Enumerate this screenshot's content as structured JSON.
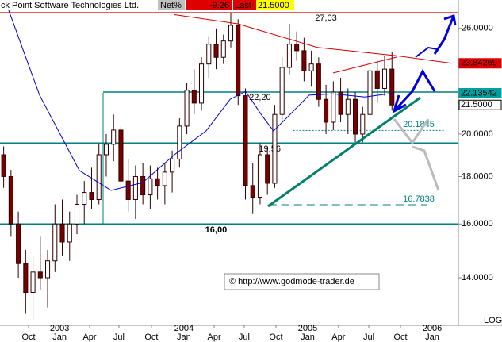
{
  "chart_data": {
    "type": "candlestick",
    "header": {
      "title": "ck Point Software Technologies Ltd.",
      "net_label": "Net%",
      "net": -9.26,
      "last_label": "Last",
      "last": {
        "value": 21.5,
        "label": "21.5000"
      }
    },
    "log_scale": true,
    "xlim": [
      0,
      187.7
    ],
    "ylim": [
      12.44,
      27.9
    ],
    "yticks": [
      {
        "value": 14,
        "label": "14.0000"
      },
      {
        "value": 16,
        "label": "16.0000"
      },
      {
        "value": 18,
        "label": "18.0000"
      },
      {
        "value": 20,
        "label": "20.0000"
      },
      {
        "value": 26,
        "label": "26.0000"
      }
    ],
    "xticks": [
      {
        "value": 11.7,
        "label": "Oct"
      },
      {
        "value": 24.4,
        "label": "Jan"
      },
      {
        "value": 36.7,
        "label": "Apr"
      },
      {
        "value": 48.7,
        "label": "Jul"
      },
      {
        "value": 62,
        "label": "Oct"
      },
      {
        "value": 75.3,
        "label": "Jan"
      },
      {
        "value": 87.7,
        "label": "Apr"
      },
      {
        "value": 100,
        "label": "Jul"
      },
      {
        "value": 113,
        "label": "Oct"
      },
      {
        "value": 126,
        "label": "Jan"
      },
      {
        "value": 138.6,
        "label": "Apr"
      },
      {
        "value": 151,
        "label": "Jul"
      },
      {
        "value": 164,
        "label": "Oct"
      },
      {
        "value": 177,
        "label": "Jan"
      }
    ],
    "year_ticks": [
      {
        "value": 24.4,
        "label": "2003"
      },
      {
        "value": 75.3,
        "label": "2004"
      },
      {
        "value": 126,
        "label": "2005"
      },
      {
        "value": 177,
        "label": "2006"
      }
    ],
    "scale_label": "LOG",
    "candles": {
      "up_color": "#ffffff",
      "down_color": "#7a0000",
      "edge_color": "#300000",
      "x": [
        1.5,
        4.5,
        7.5,
        10.5,
        13.5,
        16.5,
        19.5,
        22.5,
        25.5,
        28.5,
        31.5,
        34.5,
        37.5,
        40.5,
        43.5,
        46.5,
        49.5,
        52.5,
        55.5,
        58.5,
        61.5,
        64.5,
        67.5,
        70.5,
        73.5,
        76.5,
        79.5,
        82.5,
        85.5,
        88.5,
        91.5,
        94.5,
        97.5,
        100.5,
        103.5,
        106.5,
        109.5,
        112.5,
        115.5,
        118.5,
        121.5,
        124.5,
        127.5,
        130.5,
        133.5,
        136.5,
        139.5,
        142.5,
        145.5,
        148.5,
        151.5,
        154.5,
        157.5,
        160.5
      ],
      "open": [
        19,
        18,
        16,
        14.5,
        13.5,
        14.2,
        14,
        14.6,
        16,
        15.3,
        16,
        16.8,
        17.3,
        17,
        19,
        19.5,
        20.2,
        17.8,
        17,
        18,
        17.2,
        17.9,
        17.6,
        18.2,
        18.8,
        20.4,
        22.3,
        21.6,
        23.8,
        25,
        24.2,
        25.2,
        26.2,
        22,
        17.6,
        17.1,
        19,
        17.7,
        21,
        23.6,
        25,
        24.6,
        23.4,
        23.8,
        21.8,
        20.6,
        22.2,
        21,
        21.8,
        20,
        21,
        23.4,
        22.4,
        23.5
      ],
      "high": [
        19.4,
        18.3,
        16.5,
        15,
        14.8,
        15.5,
        15,
        16.8,
        17,
        16.5,
        17.2,
        17.8,
        18.4,
        19.5,
        20,
        21,
        20.4,
        18.8,
        18.5,
        18.6,
        18.5,
        18.4,
        18.6,
        19.2,
        20.8,
        22.7,
        23.5,
        24.2,
        25.5,
        26,
        25.6,
        27.03,
        26.6,
        22.4,
        18.6,
        19.56,
        19.4,
        21.5,
        24.2,
        26.3,
        25.8,
        25.4,
        24.6,
        24.2,
        22.6,
        22.8,
        23,
        22.4,
        22.2,
        21.4,
        23.8,
        24,
        24.3,
        24.5
      ],
      "low": [
        17.5,
        15.5,
        14,
        12.8,
        12.6,
        13.6,
        13,
        14.2,
        14.8,
        14.6,
        15.6,
        16,
        16.6,
        16.8,
        18,
        18.7,
        17.5,
        16.5,
        16.2,
        16.8,
        16.6,
        17,
        16.8,
        17.3,
        18.4,
        20,
        21,
        21.2,
        23,
        23.5,
        23.8,
        24.8,
        21.5,
        17,
        16.4,
        16.8,
        17.2,
        17.5,
        20.6,
        23.2,
        24,
        22.8,
        22.5,
        21.4,
        20,
        20.2,
        20.6,
        20,
        19.6,
        19.6,
        20.8,
        21.6,
        22,
        21.2
      ],
      "close": [
        18,
        16,
        14.5,
        13.5,
        14.2,
        14,
        14.6,
        16,
        15.3,
        16,
        16.8,
        17.3,
        17,
        19,
        19.5,
        20.2,
        17.8,
        17,
        18,
        17.2,
        17.9,
        17.6,
        18.2,
        18.8,
        20.4,
        22.3,
        21.6,
        23.8,
        25,
        24.2,
        25.2,
        26.2,
        22,
        17.6,
        17.1,
        19,
        17.7,
        21,
        23.6,
        25,
        24.6,
        23.4,
        23.8,
        21.8,
        20.6,
        22.2,
        21,
        21.8,
        20,
        21,
        23.4,
        22.4,
        23.5,
        21.5
      ]
    },
    "series": [
      {
        "color": "#d00000",
        "x": [
          71.4,
          97.4,
          130,
          162,
          185
        ],
        "values": [
          26.9,
          26.3,
          24.8,
          24.3,
          23.84269
        ]
      },
      {
        "color": "#0000d0",
        "x": [
          3.2,
          16.2,
          32.5,
          45.5,
          58.4,
          71.4,
          84.4,
          94.2,
          100.6,
          107.1,
          112,
          116.9,
          126.6,
          136.4,
          149.4,
          160.7
        ],
        "values": [
          27.36,
          22.03,
          18.27,
          17.39,
          17.73,
          19.0,
          20.16,
          21.8,
          22.24,
          20.97,
          20.16,
          20.76,
          22.03,
          22.1,
          21.93,
          22.13542
        ]
      }
    ],
    "last_labels": [
      {
        "value": 23.84269,
        "color": "#e00000"
      },
      {
        "value": 22.13542,
        "color": "#00a0a0"
      },
      {
        "value": {
          "value": 21.5,
          "label": "21.5000"
        },
        "color": "#ffffff"
      }
    ],
    "levels": [
      {
        "value": 27.03,
        "label": "27,03",
        "color": "#d00000",
        "from": 0,
        "to": 187.7,
        "label_x": 129
      },
      {
        "value": 22.2,
        "label": "22,20",
        "color": "#008080",
        "from": 42.2,
        "to": 187.7,
        "label_x": 102
      },
      {
        "value": 19.56,
        "label": "19,56",
        "color": "#008080",
        "from": 0,
        "to": 187.7,
        "label_x": 106
      },
      {
        "value": 16,
        "label": "16,00",
        "color": "#008080",
        "from": 0,
        "to": 187.7,
        "label_x": 84
      },
      {
        "value": 20.1845,
        "color": "#008080",
        "from": 120,
        "to": 182,
        "label_x": 165,
        "dotted": true
      },
      {
        "value": 16.7838,
        "color": "#008080",
        "from": 110,
        "to": 175,
        "label_x": 165,
        "dashed": true
      }
    ],
    "copyright": "© http://www.godmode-trader.de"
  }
}
